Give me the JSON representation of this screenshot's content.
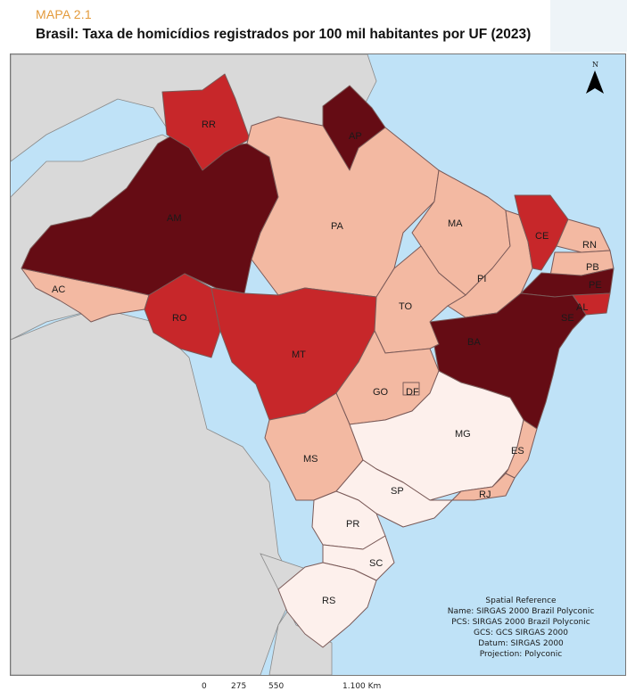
{
  "header": {
    "kicker": "MAPA 2.1",
    "title": "Brasil: Taxa de homicídios registrados por 100 mil habitantes por UF (2023)"
  },
  "colors": {
    "ocean": "#bfe2f7",
    "neighbors": "#d9d9d9",
    "class_1": "#fdf0ec",
    "class_2": "#f3b9a2",
    "class_3": "#c7272a",
    "class_4": "#650c14"
  },
  "states": [
    {
      "uf": "AC",
      "class": 2
    },
    {
      "uf": "AM",
      "class": 4
    },
    {
      "uf": "RR",
      "class": 3
    },
    {
      "uf": "AP",
      "class": 4
    },
    {
      "uf": "PA",
      "class": 2
    },
    {
      "uf": "MA",
      "class": 2
    },
    {
      "uf": "PI",
      "class": 2
    },
    {
      "uf": "CE",
      "class": 3
    },
    {
      "uf": "RN",
      "class": 2
    },
    {
      "uf": "PB",
      "class": 2
    },
    {
      "uf": "PE",
      "class": 4
    },
    {
      "uf": "AL",
      "class": 3
    },
    {
      "uf": "SE",
      "class": 2
    },
    {
      "uf": "BA",
      "class": 4
    },
    {
      "uf": "RO",
      "class": 3
    },
    {
      "uf": "MT",
      "class": 3
    },
    {
      "uf": "TO",
      "class": 2
    },
    {
      "uf": "GO",
      "class": 2
    },
    {
      "uf": "DF",
      "class": 2
    },
    {
      "uf": "MS",
      "class": 2
    },
    {
      "uf": "MG",
      "class": 1
    },
    {
      "uf": "ES",
      "class": 2
    },
    {
      "uf": "RJ",
      "class": 2
    },
    {
      "uf": "SP",
      "class": 1
    },
    {
      "uf": "PR",
      "class": 1
    },
    {
      "uf": "SC",
      "class": 1
    },
    {
      "uf": "RS",
      "class": 1
    }
  ],
  "north_arrow": {
    "label": "N",
    "icon": "north-arrow-icon"
  },
  "spatial_reference": {
    "heading": "Spatial Reference",
    "name": "Name: SIRGAS 2000 Brazil Polyconic",
    "pcs": "PCS: SIRGAS 2000 Brazil Polyconic",
    "gcs": "GCS: GCS SIRGAS 2000",
    "datum": "Datum: SIRGAS 2000",
    "projection": "Projection: Polyconic"
  },
  "scale_bar": {
    "tick_0": "0",
    "tick_1": "275",
    "tick_2": "550",
    "tick_3": "1.100 Km"
  }
}
